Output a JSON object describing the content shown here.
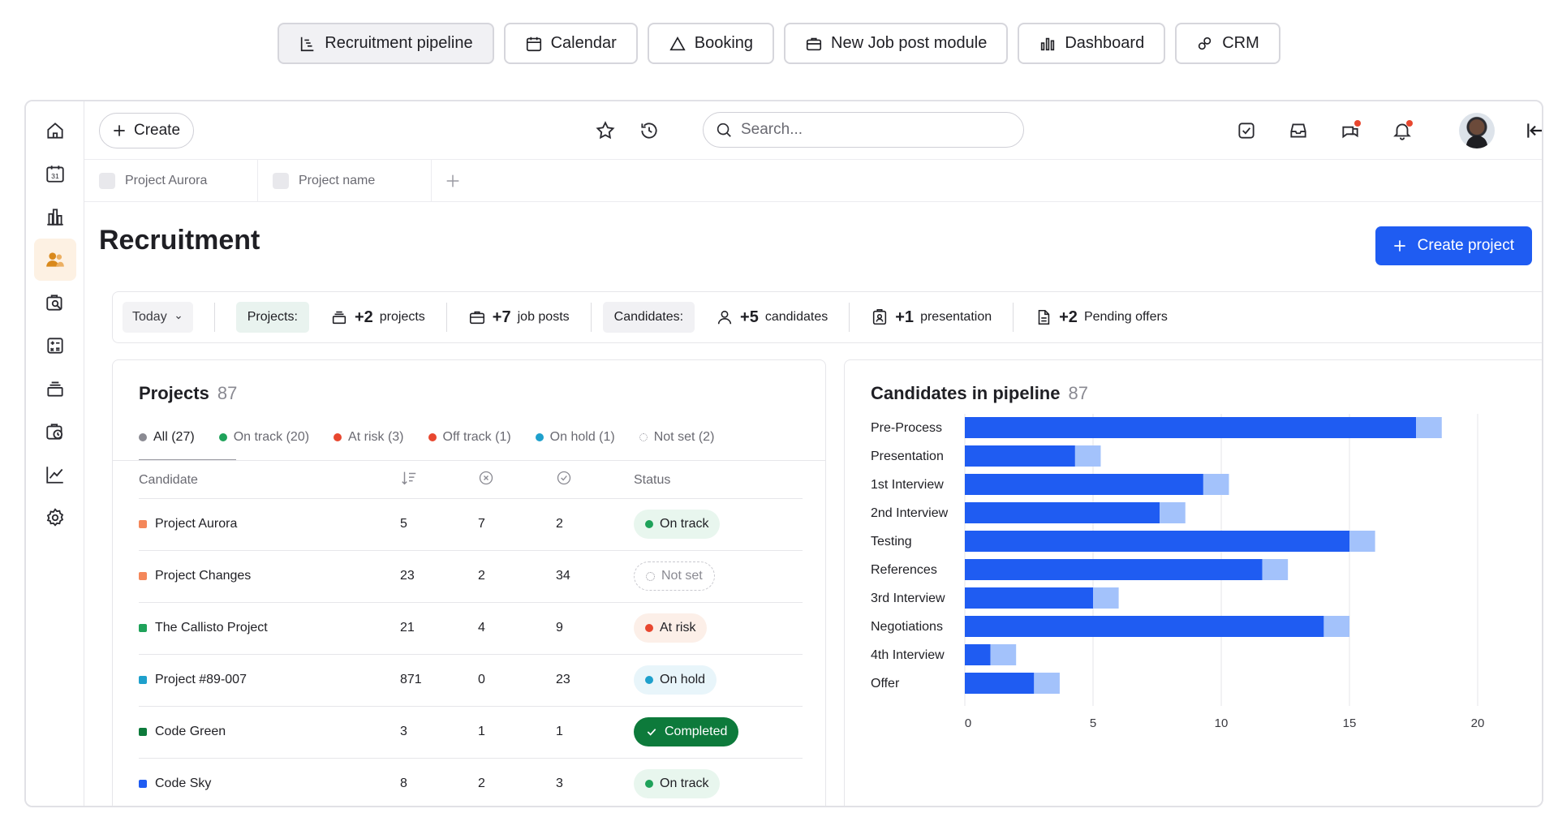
{
  "top_tabs": [
    {
      "label": "Recruitment pipeline",
      "icon": "pipeline-icon",
      "active": true
    },
    {
      "label": "Calendar",
      "icon": "calendar-icon"
    },
    {
      "label": "Booking",
      "icon": "triangle-icon"
    },
    {
      "label": "New Job post module",
      "icon": "briefcase-icon"
    },
    {
      "label": "Dashboard",
      "icon": "bar-chart-icon"
    },
    {
      "label": "CRM",
      "icon": "crm-icon"
    }
  ],
  "sidebar": {
    "items": [
      {
        "icon": "home-icon"
      },
      {
        "icon": "calendar-31-icon",
        "text": "31"
      },
      {
        "icon": "buildings-icon"
      },
      {
        "icon": "people-icon",
        "active": true
      },
      {
        "icon": "search-doc-icon"
      },
      {
        "icon": "calculator-icon"
      },
      {
        "icon": "stack-icon"
      },
      {
        "icon": "clock-folder-icon"
      },
      {
        "icon": "line-chart-icon"
      },
      {
        "icon": "gear-icon"
      }
    ]
  },
  "topbar": {
    "create_label": "Create",
    "search_placeholder": "Search..."
  },
  "project_tabs": [
    {
      "label": "Project Aurora"
    },
    {
      "label": "Project name"
    }
  ],
  "page": {
    "title": "Recruitment",
    "create_project_label": "Create project"
  },
  "summary": {
    "period": "Today",
    "projects_label": "Projects:",
    "projects_stats": [
      {
        "num": "+2",
        "label": "projects",
        "icon": "stack-icon"
      },
      {
        "num": "+7",
        "label": "job posts",
        "icon": "briefcase-icon"
      }
    ],
    "candidates_label": "Candidates:",
    "candidates_stats": [
      {
        "num": "+5",
        "label": "candidates",
        "icon": "person-icon"
      },
      {
        "num": "+1",
        "label": "presentation",
        "icon": "badge-icon"
      },
      {
        "num": "+2",
        "label": "Pending offers",
        "icon": "document-icon"
      }
    ]
  },
  "projects": {
    "title": "Projects",
    "count": "87",
    "filters": [
      {
        "label": "All (27)",
        "color": "#8a8a92",
        "active": true
      },
      {
        "label": "On track (20)",
        "color": "#1fa25a"
      },
      {
        "label": "At risk (3)",
        "color": "#e8472f"
      },
      {
        "label": "Off track (1)",
        "color": "#e8472f"
      },
      {
        "label": "On hold (1)",
        "color": "#1ea0cc"
      },
      {
        "label": "Not set (2)",
        "color": "none"
      }
    ],
    "columns": {
      "candidate": "Candidate",
      "status": "Status"
    },
    "rows": [
      {
        "name": "Project Aurora",
        "color": "#f4875a",
        "a": "5",
        "b": "7",
        "c": "2",
        "status": "On track",
        "status_type": "ontrack"
      },
      {
        "name": "Project Changes",
        "color": "#f4875a",
        "a": "23",
        "b": "2",
        "c": "34",
        "status": "Not set",
        "status_type": "notset"
      },
      {
        "name": "The Callisto Project",
        "color": "#1fa25a",
        "a": "21",
        "b": "4",
        "c": "9",
        "status": "At risk",
        "status_type": "atrisk"
      },
      {
        "name": "Project #89-007",
        "color": "#1ea0cc",
        "a": "871",
        "b": "0",
        "c": "23",
        "status": "On hold",
        "status_type": "onhold"
      },
      {
        "name": "Code Green",
        "color": "#0d7a3b",
        "a": "3",
        "b": "1",
        "c": "1",
        "status": "Completed",
        "status_type": "completed"
      },
      {
        "name": "Code Sky",
        "color": "#1f5cf2",
        "a": "8",
        "b": "2",
        "c": "3",
        "status": "On track",
        "status_type": "ontrack"
      }
    ]
  },
  "chart_data": {
    "type": "bar",
    "orientation": "horizontal",
    "stacked": true,
    "title": "Candidates in pipeline",
    "count": "87",
    "categories": [
      "Pre-Process",
      "Presentation",
      "1st Interview",
      "2nd Interview",
      "Testing",
      "References",
      "3rd Interview",
      "Negotiations",
      "4th Interview",
      "Offer"
    ],
    "series": [
      {
        "values": [
          17.6,
          4.3,
          9.3,
          7.6,
          15.0,
          11.6,
          5.0,
          14.0,
          1.0,
          2.7
        ],
        "color": "#1f5cf2"
      },
      {
        "values": [
          1.0,
          1.0,
          1.0,
          1.0,
          1.0,
          1.0,
          1.0,
          1.0,
          1.0,
          1.0
        ],
        "color": "#a3c2fb"
      }
    ],
    "xlim": [
      0,
      20
    ],
    "xticks": [
      0,
      5,
      10,
      15,
      20
    ],
    "grid": true
  }
}
